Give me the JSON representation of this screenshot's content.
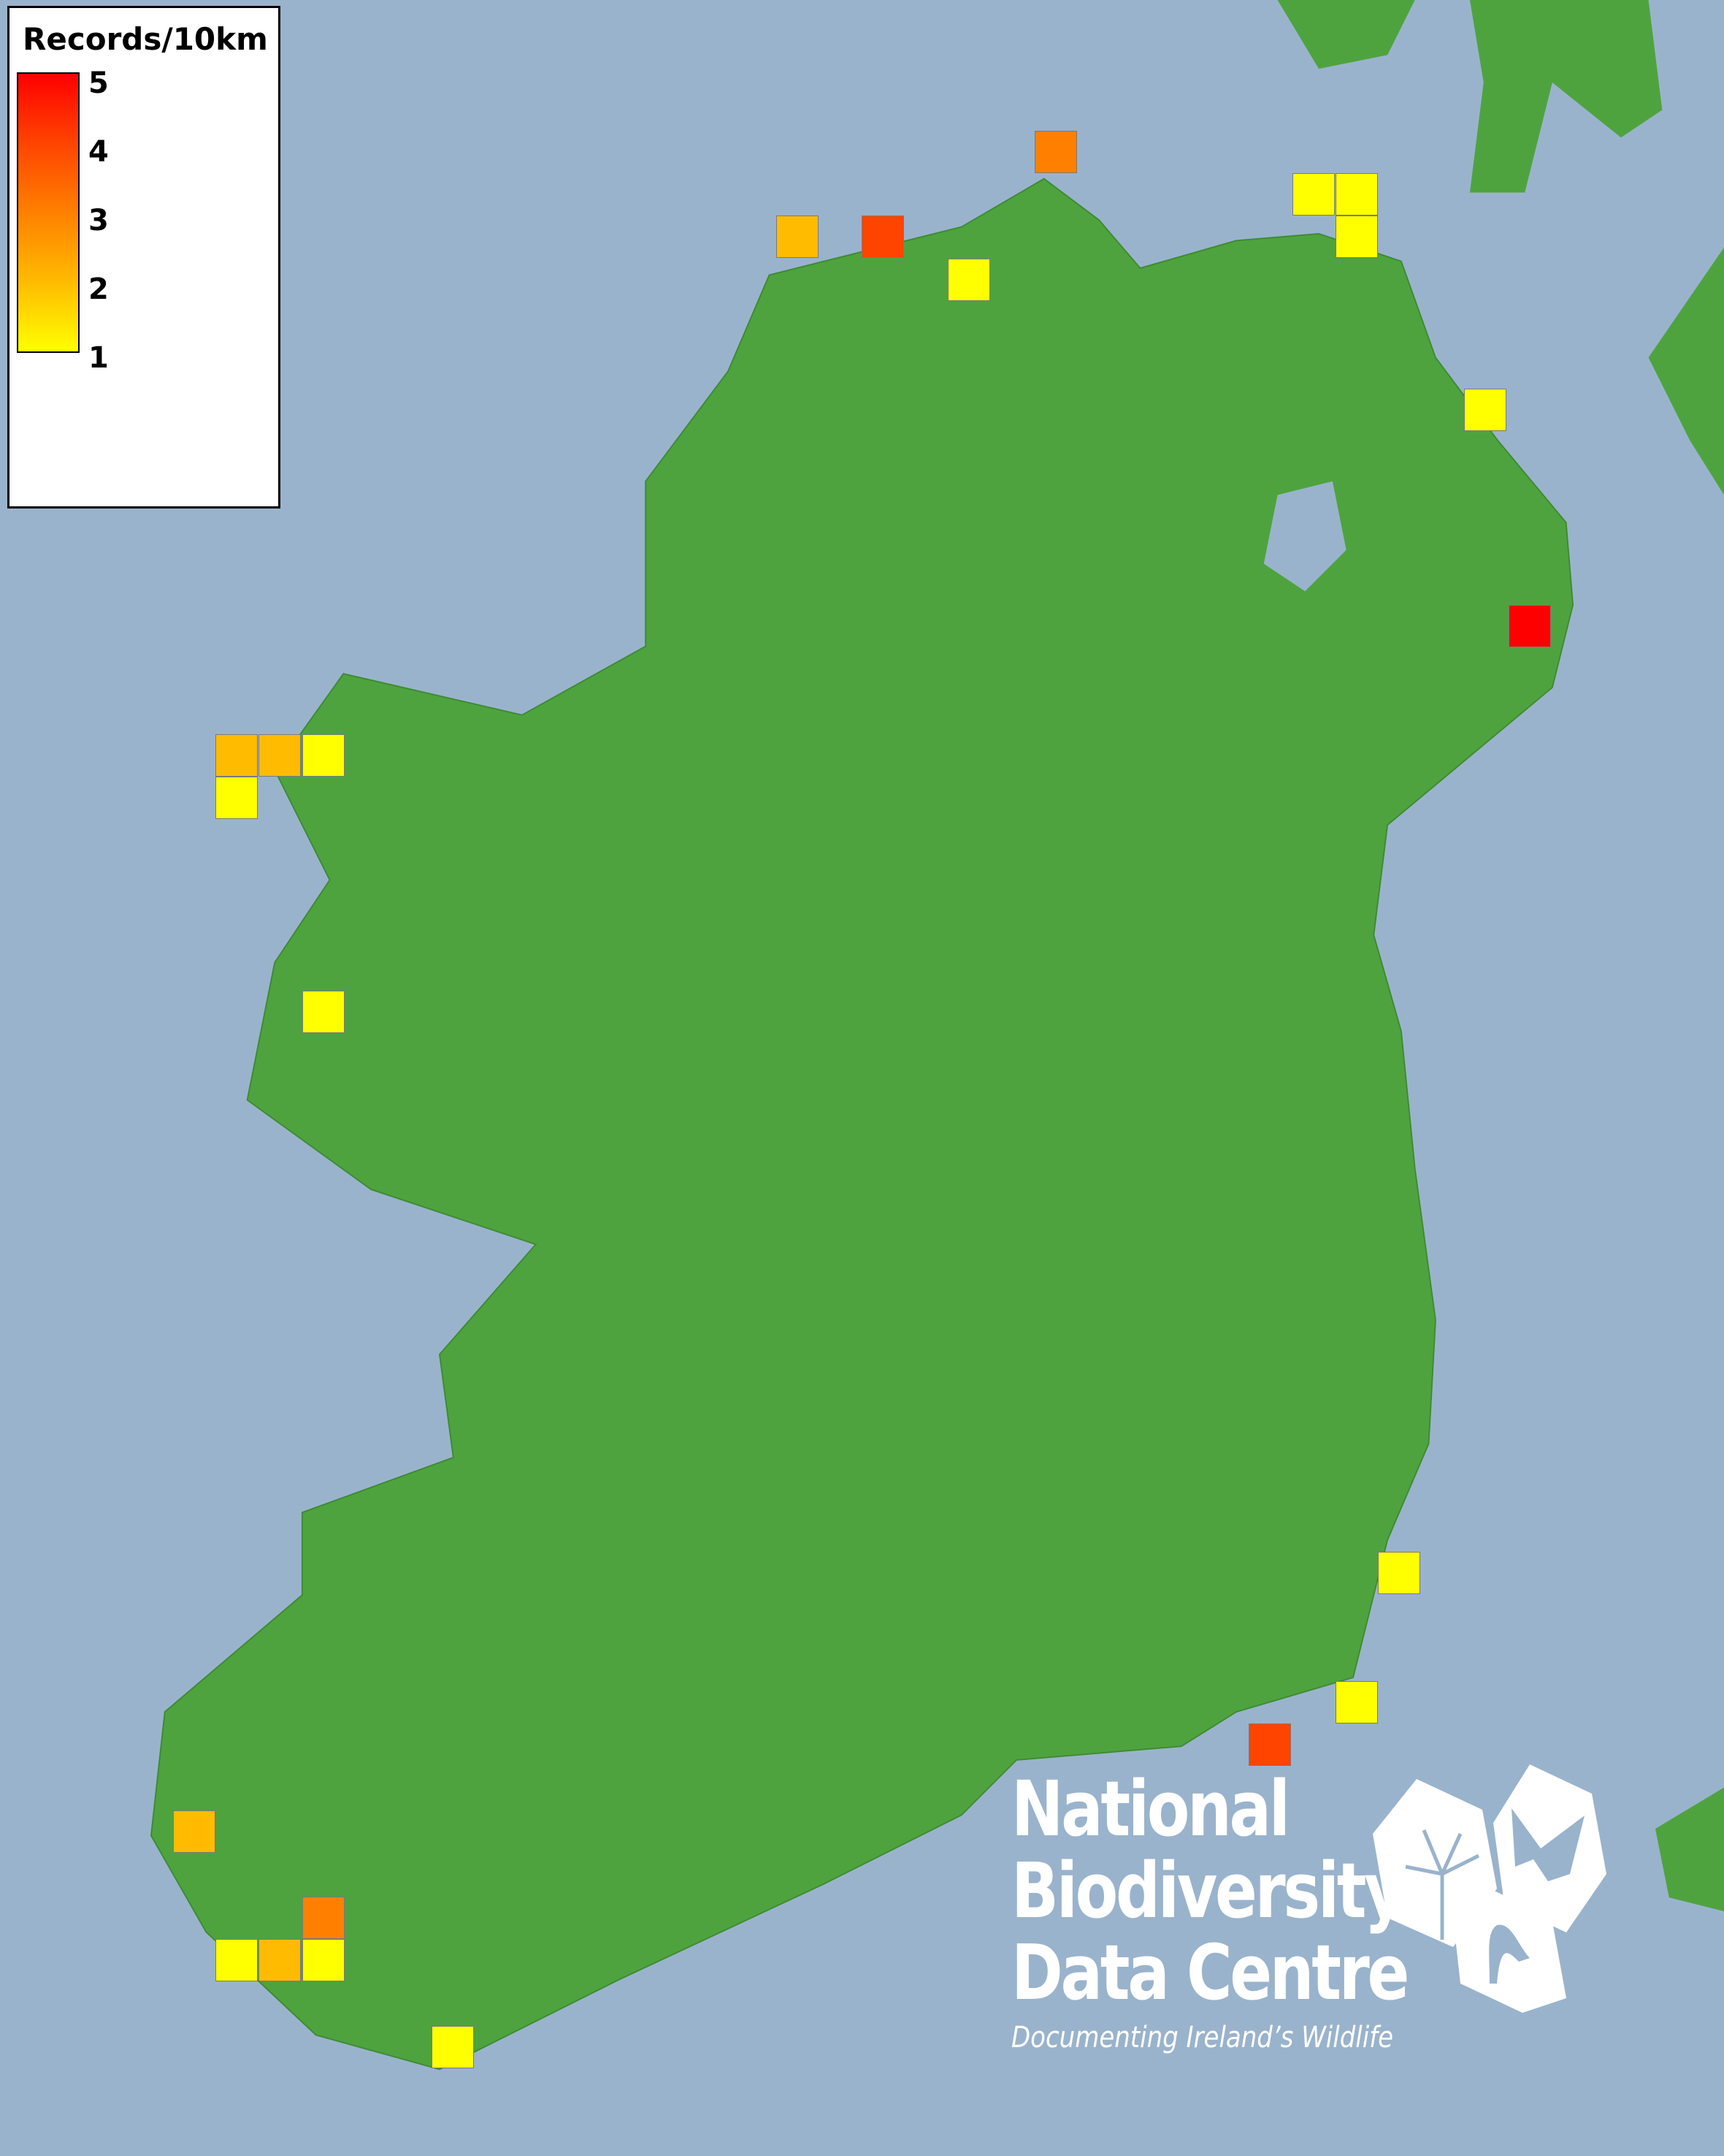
{
  "legend": {
    "title": "Records/10km",
    "ticks": [
      "5",
      "4",
      "3",
      "2",
      "1"
    ],
    "scale_min": 1,
    "scale_max": 5,
    "colors": {
      "1": "#ffff00",
      "2": "#ffbb00",
      "3": "#ff8000",
      "4": "#ff4400",
      "5": "#ff0000"
    }
  },
  "map": {
    "sea_color": "#9ab3cc",
    "land_color": "#4ea33f",
    "records": [
      3,
      2,
      4,
      1,
      1,
      1,
      1,
      1,
      5,
      2,
      2,
      1,
      1,
      1,
      1,
      1,
      4,
      2,
      3,
      1,
      2,
      1,
      1
    ]
  },
  "logo": {
    "line1": "National",
    "line2": "Biodiversity",
    "line3": "Data Centre",
    "tagline": "Documenting Ireland’s Wildlife",
    "icons": [
      "tree-icon",
      "butterfly-icon",
      "seahorse-icon"
    ]
  }
}
